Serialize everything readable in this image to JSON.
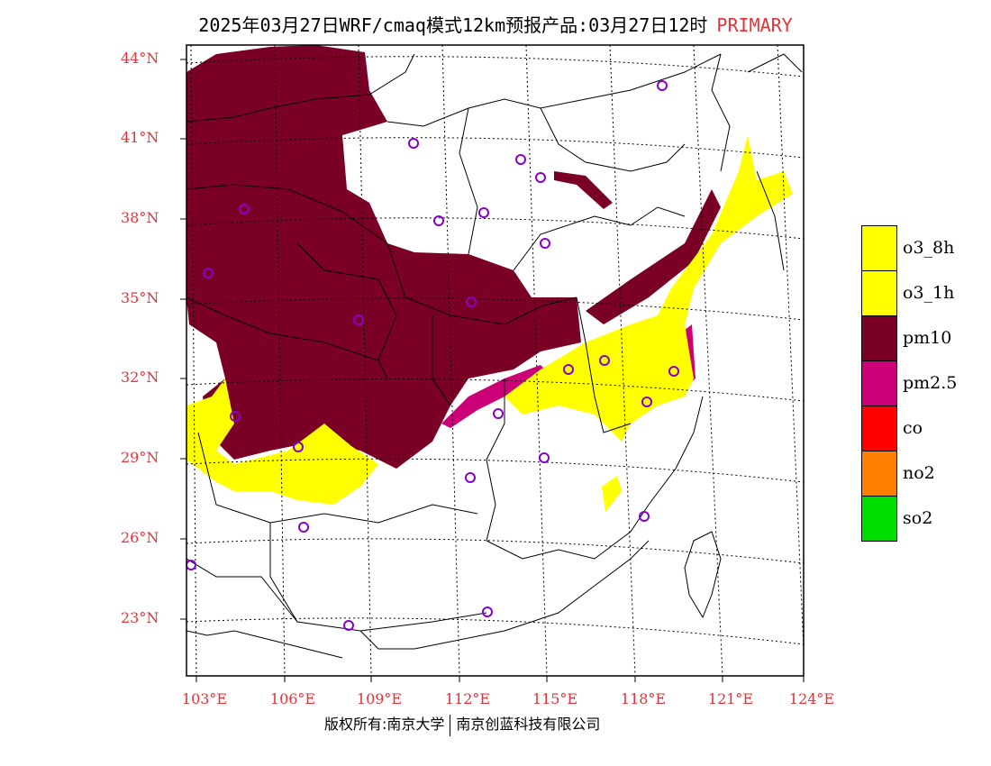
{
  "title": {
    "main": "2025年03月27日WRF/cmaq模式12km预报产品:03月27日12时",
    "highlight": "PRIMARY"
  },
  "lat_labels": [
    "44°N",
    "41°N",
    "38°N",
    "35°N",
    "32°N",
    "29°N",
    "26°N",
    "23°N"
  ],
  "lon_labels": [
    "103°E",
    "106°E",
    "109°E",
    "112°E",
    "115°E",
    "118°E",
    "121°E",
    "124°E"
  ],
  "legend": [
    {
      "label": "o3_8h",
      "color": "#ffff00"
    },
    {
      "label": "o3_1h",
      "color": "#ffff00"
    },
    {
      "label": "pm10",
      "color": "#7a0025"
    },
    {
      "label": "pm2.5",
      "color": "#cc0077"
    },
    {
      "label": "co",
      "color": "#ff0000"
    },
    {
      "label": "no2",
      "color": "#ff7f00"
    },
    {
      "label": "so2",
      "color": "#00dd00"
    }
  ],
  "copyright": {
    "left": "版权所有:南京大学",
    "right": "南京创蓝科技有限公司"
  },
  "colors": {
    "label_red": "#e0343a",
    "pm10": "#7a0025",
    "pm25": "#cc0077",
    "o3": "#ffff00",
    "station": "#8800cc"
  }
}
